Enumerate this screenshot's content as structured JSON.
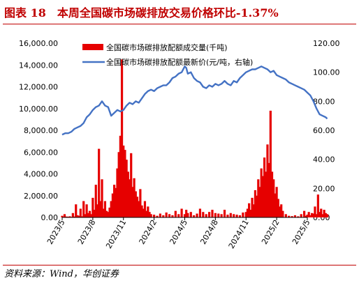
{
  "figure": {
    "title": "图表 18　本周全国碳市场碳排放交易价格环比-1.37%",
    "source": "资料来源：Wind，华创证券"
  },
  "chart_data": {
    "type": "bar+line",
    "x_ticks": [
      "2023/5",
      "2023/8",
      "2023/11",
      "2024/2",
      "2024/5",
      "2024/8",
      "2024/11",
      "2025/2",
      "2025/5"
    ],
    "y_left": {
      "ticks": [
        "0.00",
        "2,000.00",
        "4,000.00",
        "6,000.00",
        "8,000.00",
        "10,000.00",
        "12,000.00",
        "14,000.00",
        "16,000.00"
      ],
      "lim": [
        0,
        16000
      ]
    },
    "y_right": {
      "ticks": [
        "0.00",
        "20.00",
        "40.00",
        "60.00",
        "80.00",
        "100.00",
        "120.00"
      ],
      "lim": [
        0,
        120
      ]
    },
    "legend": {
      "position": "top-center"
    },
    "series": [
      {
        "name": "全国碳市场碳排放配额成交量(千吨)",
        "kind": "bar",
        "axis": "left",
        "color": "#e60000",
        "points": [
          [
            0.0,
            150
          ],
          [
            0.08,
            300
          ],
          [
            0.15,
            80
          ],
          [
            0.2,
            60
          ],
          [
            0.25,
            100
          ],
          [
            0.3,
            50
          ],
          [
            0.35,
            400
          ],
          [
            0.4,
            80
          ],
          [
            0.45,
            1200
          ],
          [
            0.5,
            200
          ],
          [
            0.55,
            150
          ],
          [
            0.6,
            800
          ],
          [
            0.65,
            100
          ],
          [
            0.7,
            1500
          ],
          [
            0.75,
            300
          ],
          [
            0.8,
            1200
          ],
          [
            0.85,
            400
          ],
          [
            0.9,
            600
          ],
          [
            0.95,
            300
          ],
          [
            1.0,
            1800
          ],
          [
            1.05,
            700
          ],
          [
            1.1,
            3000
          ],
          [
            1.15,
            1200
          ],
          [
            1.2,
            6300
          ],
          [
            1.25,
            1500
          ],
          [
            1.3,
            3500
          ],
          [
            1.35,
            800
          ],
          [
            1.4,
            1500
          ],
          [
            1.45,
            600
          ],
          [
            1.5,
            500
          ],
          [
            1.55,
            900
          ],
          [
            1.6,
            1500
          ],
          [
            1.65,
            2200
          ],
          [
            1.7,
            3000
          ],
          [
            1.75,
            2700
          ],
          [
            1.8,
            4500
          ],
          [
            1.85,
            6000
          ],
          [
            1.9,
            7500
          ],
          [
            1.95,
            14500
          ],
          [
            2.0,
            6600
          ],
          [
            2.05,
            6200
          ],
          [
            2.1,
            5300
          ],
          [
            2.15,
            4200
          ],
          [
            2.2,
            3500
          ],
          [
            2.25,
            5900
          ],
          [
            2.3,
            2800
          ],
          [
            2.35,
            3600
          ],
          [
            2.4,
            2400
          ],
          [
            2.45,
            1900
          ],
          [
            2.5,
            1500
          ],
          [
            2.55,
            2600
          ],
          [
            2.6,
            1100
          ],
          [
            2.65,
            800
          ],
          [
            2.7,
            1500
          ],
          [
            2.75,
            600
          ],
          [
            2.8,
            1000
          ],
          [
            2.85,
            500
          ],
          [
            2.9,
            300
          ],
          [
            3.0,
            250
          ],
          [
            3.1,
            150
          ],
          [
            3.2,
            350
          ],
          [
            3.3,
            200
          ],
          [
            3.4,
            450
          ],
          [
            3.5,
            300
          ],
          [
            3.6,
            200
          ],
          [
            3.7,
            600
          ],
          [
            3.8,
            300
          ],
          [
            3.9,
            800
          ],
          [
            4.0,
            300
          ],
          [
            4.05,
            700
          ],
          [
            4.1,
            400
          ],
          [
            4.2,
            500
          ],
          [
            4.3,
            200
          ],
          [
            4.4,
            350
          ],
          [
            4.5,
            800
          ],
          [
            4.6,
            500
          ],
          [
            4.7,
            300
          ],
          [
            4.8,
            500
          ],
          [
            4.9,
            700
          ],
          [
            5.0,
            400
          ],
          [
            5.1,
            350
          ],
          [
            5.2,
            300
          ],
          [
            5.3,
            700
          ],
          [
            5.4,
            250
          ],
          [
            5.5,
            400
          ],
          [
            5.6,
            300
          ],
          [
            5.7,
            250
          ],
          [
            5.8,
            200
          ],
          [
            5.9,
            450
          ],
          [
            6.0,
            500
          ],
          [
            6.05,
            800
          ],
          [
            6.1,
            1300
          ],
          [
            6.15,
            700
          ],
          [
            6.2,
            1800
          ],
          [
            6.25,
            1200
          ],
          [
            6.3,
            2500
          ],
          [
            6.35,
            2000
          ],
          [
            6.4,
            3500
          ],
          [
            6.45,
            2800
          ],
          [
            6.5,
            4500
          ],
          [
            6.55,
            3800
          ],
          [
            6.6,
            5500
          ],
          [
            6.65,
            4200
          ],
          [
            6.7,
            6700
          ],
          [
            6.75,
            5000
          ],
          [
            6.8,
            9800
          ],
          [
            6.85,
            4200
          ],
          [
            6.9,
            3500
          ],
          [
            6.95,
            2200
          ],
          [
            7.0,
            2800
          ],
          [
            7.05,
            1700
          ],
          [
            7.1,
            1000
          ],
          [
            7.15,
            1200
          ],
          [
            7.2,
            600
          ],
          [
            7.3,
            300
          ],
          [
            7.4,
            150
          ],
          [
            7.5,
            120
          ],
          [
            7.6,
            200
          ],
          [
            7.7,
            100
          ],
          [
            7.8,
            300
          ],
          [
            7.9,
            600
          ],
          [
            7.95,
            150
          ],
          [
            8.0,
            250
          ],
          [
            8.05,
            500
          ],
          [
            8.1,
            200
          ],
          [
            8.15,
            400
          ],
          [
            8.2,
            350
          ],
          [
            8.25,
            1000
          ],
          [
            8.3,
            300
          ],
          [
            8.35,
            2100
          ],
          [
            8.4,
            500
          ],
          [
            8.45,
            800
          ],
          [
            8.5,
            300
          ],
          [
            8.55,
            700
          ],
          [
            8.6,
            400
          ],
          [
            8.65,
            300
          ]
        ]
      },
      {
        "name": "全国碳市场碳排放配额最新价(元/吨，右轴)",
        "kind": "line",
        "axis": "right",
        "color": "#4472c4",
        "points": [
          [
            0.0,
            57
          ],
          [
            0.1,
            58
          ],
          [
            0.2,
            58
          ],
          [
            0.3,
            59
          ],
          [
            0.4,
            61
          ],
          [
            0.5,
            62
          ],
          [
            0.6,
            63
          ],
          [
            0.7,
            65
          ],
          [
            0.8,
            69
          ],
          [
            0.9,
            71
          ],
          [
            1.0,
            74
          ],
          [
            1.1,
            76
          ],
          [
            1.2,
            77
          ],
          [
            1.3,
            80
          ],
          [
            1.4,
            77
          ],
          [
            1.5,
            76
          ],
          [
            1.6,
            70
          ],
          [
            1.7,
            72
          ],
          [
            1.8,
            74
          ],
          [
            1.9,
            73
          ],
          [
            2.0,
            74
          ],
          [
            2.1,
            77
          ],
          [
            2.2,
            79
          ],
          [
            2.3,
            78
          ],
          [
            2.4,
            80
          ],
          [
            2.5,
            79
          ],
          [
            2.6,
            82
          ],
          [
            2.7,
            85
          ],
          [
            2.8,
            87
          ],
          [
            2.9,
            88
          ],
          [
            3.0,
            87
          ],
          [
            3.1,
            89
          ],
          [
            3.2,
            90
          ],
          [
            3.3,
            91
          ],
          [
            3.4,
            91
          ],
          [
            3.5,
            93
          ],
          [
            3.6,
            96
          ],
          [
            3.7,
            97
          ],
          [
            3.8,
            99
          ],
          [
            3.9,
            100
          ],
          [
            4.0,
            104
          ],
          [
            4.05,
            103
          ],
          [
            4.1,
            99
          ],
          [
            4.2,
            100
          ],
          [
            4.3,
            96
          ],
          [
            4.4,
            94
          ],
          [
            4.5,
            93
          ],
          [
            4.6,
            90
          ],
          [
            4.7,
            89
          ],
          [
            4.8,
            91
          ],
          [
            4.9,
            90
          ],
          [
            5.0,
            92
          ],
          [
            5.1,
            91
          ],
          [
            5.2,
            92
          ],
          [
            5.3,
            94
          ],
          [
            5.4,
            92
          ],
          [
            5.5,
            91
          ],
          [
            5.6,
            94
          ],
          [
            5.7,
            93
          ],
          [
            5.8,
            96
          ],
          [
            5.9,
            98
          ],
          [
            6.0,
            100
          ],
          [
            6.1,
            101
          ],
          [
            6.2,
            102
          ],
          [
            6.3,
            102
          ],
          [
            6.4,
            103
          ],
          [
            6.5,
            104
          ],
          [
            6.6,
            103
          ],
          [
            6.7,
            102
          ],
          [
            6.8,
            100
          ],
          [
            6.9,
            101
          ],
          [
            7.0,
            98
          ],
          [
            7.1,
            97
          ],
          [
            7.2,
            96
          ],
          [
            7.3,
            95
          ],
          [
            7.4,
            93
          ],
          [
            7.5,
            92
          ],
          [
            7.6,
            91
          ],
          [
            7.7,
            90
          ],
          [
            7.8,
            89
          ],
          [
            7.9,
            88
          ],
          [
            8.0,
            86
          ],
          [
            8.1,
            84
          ],
          [
            8.2,
            80
          ],
          [
            8.3,
            75
          ],
          [
            8.4,
            71
          ],
          [
            8.5,
            70
          ],
          [
            8.6,
            69
          ],
          [
            8.65,
            68
          ]
        ]
      }
    ]
  }
}
